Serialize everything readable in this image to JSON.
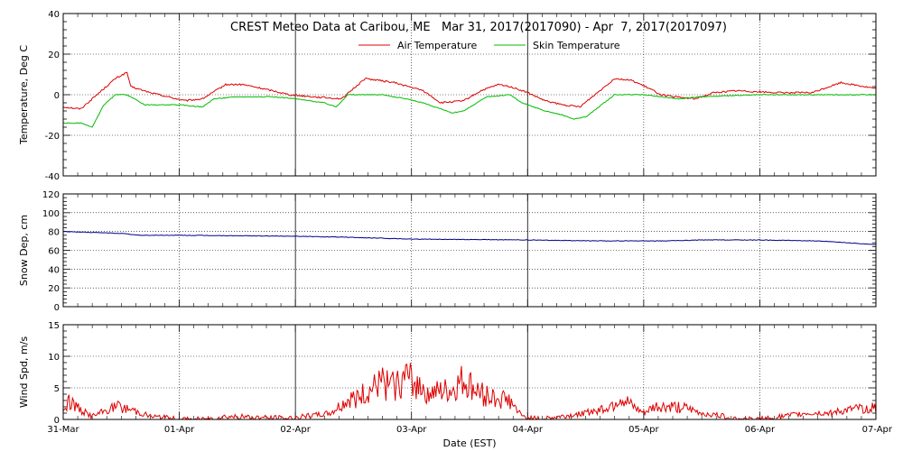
{
  "chart_data": {
    "title": "CREST Meteo Data at Caribou, ME   Mar 31, 2017(2017090) - Apr  7, 2017(2017097)",
    "xlabel": "Date (EST)",
    "x_ticks": [
      "31-Mar",
      "01-Apr",
      "02-Apr",
      "03-Apr",
      "04-Apr",
      "05-Apr",
      "06-Apr",
      "07-Apr"
    ],
    "x_range_days": [
      0,
      7
    ],
    "grid": "dotted vertical at midnight (solid at 02-Apr and 04-Apr)",
    "colors": {
      "air": "#dd0000",
      "skin": "#00bb00",
      "snow": "#00008b",
      "wind": "#dd0000",
      "axes": "#000000"
    },
    "panels": [
      {
        "type": "line",
        "ylabel": "Temperature, Deg C",
        "ylim": [
          -40,
          40
        ],
        "yticks": [
          -40,
          -20,
          0,
          20,
          40
        ],
        "legend_position": "top-center",
        "series": [
          {
            "name": "Air Temperature",
            "x": [
              0,
              0.15,
              0.35,
              0.45,
              0.55,
              0.58,
              0.75,
              0.9,
              1.05,
              1.2,
              1.4,
              1.55,
              1.8,
              1.95,
              2.15,
              2.4,
              2.6,
              2.85,
              3.1,
              3.25,
              3.45,
              3.6,
              3.75,
              3.85,
              4.0,
              4.15,
              4.3,
              4.45,
              4.75,
              4.9,
              5.05,
              5.15,
              5.25,
              5.45,
              5.6,
              5.8,
              6.15,
              6.35,
              6.45,
              6.7,
              7.0
            ],
            "y": [
              -6,
              -7,
              3,
              8,
              11,
              4,
              1,
              -1,
              -3,
              -2,
              5,
              5,
              2,
              0,
              -1,
              -2,
              8,
              6,
              2,
              -4,
              -3,
              2,
              5,
              4,
              1,
              -3,
              -5,
              -6,
              8,
              7,
              3,
              0,
              -1,
              -2,
              1,
              2,
              1,
              1,
              1,
              6,
              3
            ]
          },
          {
            "name": "Skin Temperature",
            "x": [
              0,
              0.15,
              0.25,
              0.35,
              0.45,
              0.55,
              0.7,
              1.0,
              1.2,
              1.3,
              1.5,
              1.8,
              2.0,
              2.25,
              2.35,
              2.45,
              2.75,
              2.95,
              3.1,
              3.25,
              3.35,
              3.45,
              3.65,
              3.85,
              3.95,
              4.15,
              4.3,
              4.4,
              4.5,
              4.75,
              5.0,
              5.15,
              5.3,
              5.5,
              6.0,
              6.5,
              7.0
            ],
            "y": [
              -14,
              -14,
              -16,
              -5,
              0,
              0,
              -5,
              -5,
              -6,
              -2,
              -1,
              -1,
              -2,
              -4,
              -6,
              0,
              0,
              -2,
              -4,
              -7,
              -9,
              -8,
              -1,
              0,
              -4,
              -8,
              -10,
              -12,
              -11,
              0,
              0,
              -1,
              -2,
              -1,
              0,
              0,
              0
            ]
          }
        ]
      },
      {
        "type": "line",
        "ylabel": "Snow Dep, cm",
        "ylim": [
          0,
          120
        ],
        "yticks": [
          0,
          20,
          40,
          60,
          80,
          100,
          120
        ],
        "series": [
          {
            "name": "",
            "x": [
              0,
              0.5,
              0.65,
              1.0,
              2.0,
              2.4,
              3.0,
              4.0,
              4.6,
              5.2,
              5.5,
              6.0,
              6.5,
              7.0
            ],
            "y": [
              80,
              78,
              76,
              76,
              75,
              74,
              72,
              71,
              70,
              70,
              71,
              71,
              70,
              66
            ]
          }
        ]
      },
      {
        "type": "line",
        "ylabel": "Wind Spd, m/s",
        "ylim": [
          0,
          15
        ],
        "yticks": [
          0,
          5,
          10,
          15
        ],
        "series": [
          {
            "name": "",
            "x": [
              0,
              0.05,
              0.15,
              0.25,
              0.45,
              0.6,
              0.75,
              1.0,
              1.2,
              1.4,
              1.7,
              1.95,
              2.1,
              2.3,
              2.45,
              2.6,
              2.75,
              2.85,
              2.95,
              3.1,
              3.2,
              3.35,
              3.45,
              3.6,
              3.75,
              3.85,
              3.95,
              4.1,
              4.3,
              4.5,
              4.7,
              4.8,
              4.9,
              5.0,
              5.1,
              5.3,
              5.5,
              5.7,
              5.85,
              6.0,
              6.2,
              6.4,
              6.6,
              6.8,
              7.0
            ],
            "y": [
              1.5,
              3,
              1.5,
              0.5,
              2,
              1.5,
              0.5,
              0,
              0,
              0.5,
              0.3,
              0.2,
              0.5,
              1,
              3,
              4,
              5.5,
              5,
              6.5,
              5,
              4,
              4.5,
              6,
              4,
              3.5,
              3,
              0.5,
              0,
              0.5,
              1,
              2,
              3.5,
              2,
              1,
              2,
              2,
              1,
              0.5,
              0,
              0,
              0.5,
              1,
              1,
              1.5,
              2
            ]
          }
        ]
      }
    ]
  }
}
